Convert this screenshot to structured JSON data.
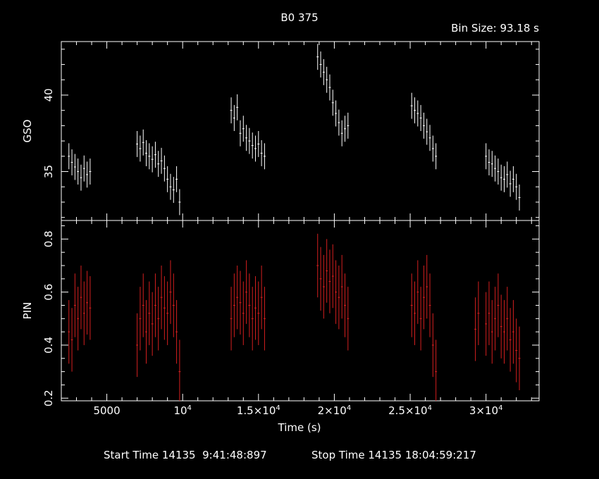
{
  "chart_data": [
    {
      "type": "scatter",
      "title": "B0 375",
      "subtitle": "Bin Size: 93.18 s",
      "ylabel": "GSO",
      "xlim": [
        2000,
        33500
      ],
      "ylim": [
        31.8,
        43.5
      ],
      "yticks": [
        35,
        40
      ],
      "color": "#ffffff",
      "series": [
        {
          "x": [
            2500,
            2700,
            2900,
            3100,
            3300,
            3500,
            3700,
            3900,
            7000,
            7200,
            7400,
            7600,
            7800,
            8000,
            8200,
            8400,
            8600,
            8800,
            9000,
            9200,
            9400,
            9600,
            9800,
            13200,
            13400,
            13600,
            13800,
            14000,
            14200,
            14400,
            14600,
            14800,
            15000,
            15200,
            15400,
            18900,
            19100,
            19300,
            19500,
            19700,
            19900,
            20100,
            20300,
            20500,
            20700,
            20900,
            25100,
            25300,
            25500,
            25700,
            25900,
            26100,
            26300,
            26500,
            26700,
            30000,
            30200,
            30400,
            30600,
            30800,
            31000,
            31200,
            31400,
            31600,
            31800,
            32000,
            32200
          ],
          "y": [
            36.0,
            35.6,
            35.3,
            35.0,
            34.6,
            35.2,
            34.8,
            35.0,
            36.8,
            36.5,
            36.9,
            36.2,
            36.0,
            35.8,
            36.1,
            35.5,
            35.7,
            35.2,
            34.5,
            34.0,
            33.8,
            34.5,
            33.0,
            39.0,
            38.5,
            39.2,
            37.5,
            37.8,
            37.2,
            37.0,
            36.7,
            36.5,
            36.8,
            36.2,
            36.0,
            42.5,
            42.0,
            41.5,
            41.0,
            40.5,
            39.5,
            38.8,
            38.2,
            37.5,
            37.8,
            38.0,
            39.3,
            39.0,
            38.8,
            38.5,
            38.0,
            37.6,
            37.2,
            36.5,
            36.0,
            36.0,
            35.6,
            35.5,
            35.2,
            35.0,
            34.6,
            34.5,
            34.8,
            34.2,
            34.5,
            34.0,
            33.3
          ],
          "yerr": 0.85
        }
      ]
    },
    {
      "type": "scatter",
      "xlabel": "Time (s)",
      "ylabel": "PIN",
      "xlim": [
        2000,
        33500
      ],
      "ylim": [
        0.19,
        0.87
      ],
      "yticks": [
        0.2,
        0.4,
        0.6,
        0.8
      ],
      "xticks": [
        {
          "value": 5000,
          "label": "5000"
        },
        {
          "value": 10000,
          "label": "10",
          "sup": "4"
        },
        {
          "value": 15000,
          "label": "1.5×10",
          "sup": "4"
        },
        {
          "value": 20000,
          "label": "2×10",
          "sup": "4"
        },
        {
          "value": 25000,
          "label": "2.5×10",
          "sup": "4"
        },
        {
          "value": 30000,
          "label": "3×10",
          "sup": "4"
        }
      ],
      "color": "#d41f1f",
      "series": [
        {
          "x": [
            2500,
            2700,
            2900,
            3100,
            3300,
            3500,
            3700,
            3900,
            7000,
            7200,
            7400,
            7600,
            7800,
            8000,
            8200,
            8400,
            8600,
            8800,
            9000,
            9200,
            9400,
            9600,
            9800,
            13200,
            13400,
            13600,
            13800,
            14000,
            14200,
            14400,
            14600,
            14800,
            15000,
            15200,
            15400,
            18900,
            19100,
            19300,
            19500,
            19700,
            19900,
            20100,
            20300,
            20500,
            20700,
            20900,
            25100,
            25300,
            25500,
            25700,
            25900,
            26100,
            26300,
            26500,
            26700,
            29300,
            29500,
            30000,
            30200,
            30400,
            30600,
            30800,
            31000,
            31200,
            31400,
            31600,
            31800,
            32000,
            32200
          ],
          "y": [
            0.45,
            0.42,
            0.55,
            0.5,
            0.58,
            0.52,
            0.56,
            0.54,
            0.4,
            0.5,
            0.55,
            0.45,
            0.52,
            0.48,
            0.55,
            0.5,
            0.58,
            0.54,
            0.52,
            0.6,
            0.55,
            0.45,
            0.3,
            0.5,
            0.55,
            0.58,
            0.56,
            0.52,
            0.6,
            0.55,
            0.5,
            0.54,
            0.52,
            0.58,
            0.5,
            0.7,
            0.65,
            0.62,
            0.68,
            0.64,
            0.66,
            0.6,
            0.58,
            0.62,
            0.55,
            0.5,
            0.55,
            0.52,
            0.6,
            0.5,
            0.58,
            0.62,
            0.55,
            0.4,
            0.3,
            0.46,
            0.52,
            0.48,
            0.52,
            0.45,
            0.5,
            0.55,
            0.47,
            0.45,
            0.5,
            0.42,
            0.45,
            0.38,
            0.35
          ],
          "yerr": 0.12
        }
      ]
    }
  ],
  "footer": {
    "start_label": "Start Time 14135  9:41:48:897",
    "stop_label": "Stop Time 14135 18:04:59:217"
  }
}
